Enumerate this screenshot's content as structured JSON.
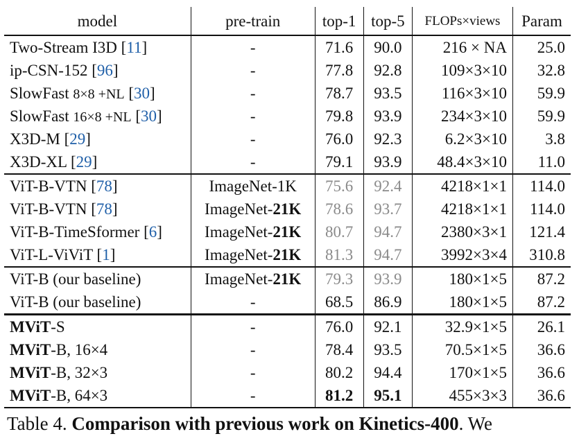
{
  "headers": {
    "model": "model",
    "pretrain": "pre-train",
    "top1": "top-1",
    "top5": "top-5",
    "flops": "FLOPs×views",
    "param": "Param"
  },
  "rows": [
    {
      "model": "Two-Stream I3D",
      "suffix": "",
      "ref": "11",
      "pretrain": "-",
      "top1": "71.6",
      "top5": "90.0",
      "flops": "216 × NA",
      "param": "25.0"
    },
    {
      "model": "ip-CSN-152",
      "suffix": "",
      "ref": "96",
      "pretrain": "-",
      "top1": "77.8",
      "top5": "92.8",
      "flops": "109×3×10",
      "param": "32.8"
    },
    {
      "model": "SlowFast",
      "suffix": "8×8 +NL",
      "ref": "30",
      "pretrain": "-",
      "top1": "78.7",
      "top5": "93.5",
      "flops": "116×3×10",
      "param": "59.9"
    },
    {
      "model": "SlowFast",
      "suffix": "16×8 +NL",
      "ref": "30",
      "pretrain": "-",
      "top1": "79.8",
      "top5": "93.9",
      "flops": "234×3×10",
      "param": "59.9"
    },
    {
      "model": "X3D-M",
      "suffix": "",
      "ref": "29",
      "pretrain": "-",
      "top1": "76.0",
      "top5": "92.3",
      "flops": "6.2×3×10",
      "param": "3.8"
    },
    {
      "model": "X3D-XL",
      "suffix": "",
      "ref": "29",
      "pretrain": "-",
      "top1": "79.1",
      "top5": "93.9",
      "flops": "48.4×3×10",
      "param": "11.0"
    },
    {
      "model": "ViT-B-VTN",
      "suffix": "",
      "ref": "78",
      "pretrain": "ImageNet-1K",
      "top1": "75.6",
      "top5": "92.4",
      "flops": "4218×1×1",
      "param": "114.0"
    },
    {
      "model": "ViT-B-VTN",
      "suffix": "",
      "ref": "78",
      "pretrain_prefix": "ImageNet-",
      "pretrain_bold": "21K",
      "top1": "78.6",
      "top5": "93.7",
      "flops": "4218×1×1",
      "param": "114.0"
    },
    {
      "model": "ViT-B-TimeSformer",
      "suffix": "",
      "ref": "6",
      "pretrain_prefix": "ImageNet-",
      "pretrain_bold": "21K",
      "top1": "80.7",
      "top5": "94.7",
      "flops": "2380×3×1",
      "param": "121.4"
    },
    {
      "model": "ViT-L-ViViT",
      "suffix": "",
      "ref": "1",
      "pretrain_prefix": "ImageNet-",
      "pretrain_bold": "21K",
      "top1": "81.3",
      "top5": "94.7",
      "flops": "3992×3×4",
      "param": "310.8"
    },
    {
      "model": "ViT-B (our baseline)",
      "pretrain_prefix": "ImageNet-",
      "pretrain_bold": "21K",
      "top1": "79.3",
      "top5": "93.9",
      "flops": "180×1×5",
      "param": "87.2"
    },
    {
      "model": "ViT-B (our baseline)",
      "pretrain": "-",
      "top1": "68.5",
      "top5": "86.9",
      "flops": "180×1×5",
      "param": "87.2"
    },
    {
      "model_bold": "MViT",
      "model_rest": "-S",
      "pretrain": "-",
      "top1": "76.0",
      "top5": "92.1",
      "flops": "32.9×1×5",
      "param": "26.1"
    },
    {
      "model_bold": "MViT",
      "model_rest": "-B, 16×4",
      "pretrain": "-",
      "top1": "78.4",
      "top5": "93.5",
      "flops": "70.5×1×5",
      "param": "36.6"
    },
    {
      "model_bold": "MViT",
      "model_rest": "-B, 32×3",
      "pretrain": "-",
      "top1": "80.2",
      "top5": "94.4",
      "flops": "170×1×5",
      "param": "36.6"
    },
    {
      "model_bold": "MViT",
      "model_rest": "-B, 64×3",
      "pretrain": "-",
      "top1": "81.2",
      "top5": "95.1",
      "flops": "455×3×3",
      "param": "36.6"
    }
  ],
  "caption": {
    "label": "Table 4.",
    "title": "Comparison with previous work on Kinetics-400",
    "tail": ". We"
  },
  "colors": {
    "ref": "#1f5fa8",
    "gray_value": "#8a8a8a"
  }
}
